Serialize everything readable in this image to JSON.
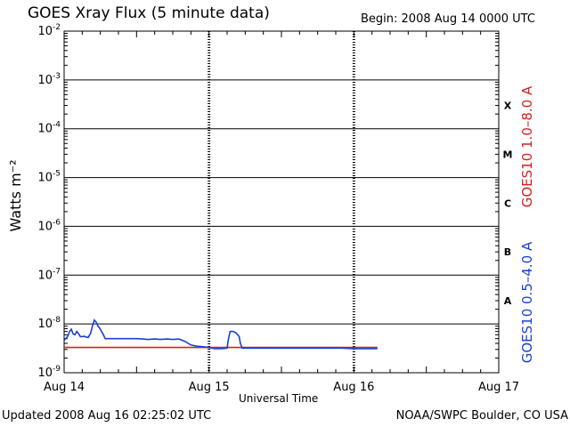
{
  "header": {
    "title": "GOES Xray Flux (5 minute data)",
    "begin": "Begin:  2008 Aug 14 0000 UTC"
  },
  "footer": {
    "updated": "Updated 2008 Aug 16 02:25:02 UTC",
    "credit": "NOAA/SWPC Boulder, CO USA"
  },
  "chart_data": {
    "type": "line",
    "title": "GOES Xray Flux (5 minute data)",
    "xlabel": "Universal Time",
    "ylabel": "Watts m⁻²",
    "y_scale": "log",
    "ylim": [
      1e-09,
      0.01
    ],
    "xlim": [
      0,
      72
    ],
    "x_unit": "hours since 2008 Aug 14 0000 UTC",
    "x_ticks": [
      {
        "x": 0,
        "label": "Aug 14"
      },
      {
        "x": 24,
        "label": "Aug 15"
      },
      {
        "x": 48,
        "label": "Aug 16"
      },
      {
        "x": 72,
        "label": "Aug 17"
      }
    ],
    "y_ticks": [
      {
        "exp": -2,
        "value": 0.01
      },
      {
        "exp": -3,
        "value": 0.001
      },
      {
        "exp": -4,
        "value": 0.0001
      },
      {
        "exp": -5,
        "value": 1e-05
      },
      {
        "exp": -6,
        "value": 1e-06
      },
      {
        "exp": -7,
        "value": 1e-07
      },
      {
        "exp": -8,
        "value": 1e-08
      },
      {
        "exp": -9,
        "value": 1e-09
      }
    ],
    "flare_classes": [
      {
        "label": "X",
        "value": 0.0003
      },
      {
        "label": "M",
        "value": 3e-05
      },
      {
        "label": "C",
        "value": 3e-06
      },
      {
        "label": "B",
        "value": 3e-07
      },
      {
        "label": "A",
        "value": 3e-08
      }
    ],
    "grid": true,
    "series": [
      {
        "name": "GOES10 1.0–8.0 A",
        "color": "#d42020",
        "x": [
          0,
          5,
          10,
          15,
          20,
          25,
          30,
          35,
          40,
          45,
          48,
          51.9
        ],
        "y": [
          3.3e-09,
          3.3e-09,
          3.3e-09,
          3.3e-09,
          3.3e-09,
          3.3e-09,
          3.3e-09,
          3.3e-09,
          3.3e-09,
          3.3e-09,
          3.3e-09,
          3.3e-09
        ]
      },
      {
        "name": "GOES10 0.5–4.0 A",
        "color": "#1a3fd8",
        "x": [
          0,
          0.6,
          0.9,
          1.2,
          1.5,
          1.8,
          2.1,
          2.4,
          2.7,
          3.0,
          3.3,
          3.6,
          4.0,
          4.4,
          4.7,
          5.0,
          5.3,
          5.6,
          5.9,
          6.2,
          6.5,
          6.8,
          7.1,
          7.5,
          10,
          12,
          13,
          14,
          15,
          16,
          17,
          18,
          19,
          20,
          21,
          22,
          23,
          24,
          25,
          26,
          27,
          27.2,
          27.5,
          28.0,
          28.5,
          29.0,
          29.2,
          29.5,
          30,
          32,
          34,
          36,
          38,
          40,
          42,
          44,
          46,
          48,
          50,
          51.9
        ],
        "y": [
          4.6e-09,
          5.6e-09,
          7e-09,
          7.8e-09,
          6.2e-09,
          6e-09,
          7e-09,
          6.3e-09,
          5.5e-09,
          5.5e-09,
          5.6e-09,
          5.4e-09,
          5.3e-09,
          6.5e-09,
          9.2e-09,
          1.2e-08,
          1.1e-08,
          9e-09,
          8.2e-09,
          7e-09,
          6e-09,
          5e-09,
          5e-09,
          5e-09,
          5e-09,
          5e-09,
          4.9e-09,
          4.8e-09,
          4.9e-09,
          4.8e-09,
          4.9e-09,
          4.8e-09,
          4.9e-09,
          4.4e-09,
          3.7e-09,
          3.5e-09,
          3.4e-09,
          3.3e-09,
          3.1e-09,
          3.1e-09,
          3.2e-09,
          4.8e-09,
          7e-09,
          7e-09,
          6.5e-09,
          5.5e-09,
          4e-09,
          3.2e-09,
          3.2e-09,
          3.2e-09,
          3.2e-09,
          3.2e-09,
          3.2e-09,
          3.2e-09,
          3.2e-09,
          3.2e-09,
          3.2e-09,
          3.1e-09,
          3.1e-09,
          3.1e-09
        ]
      }
    ]
  }
}
